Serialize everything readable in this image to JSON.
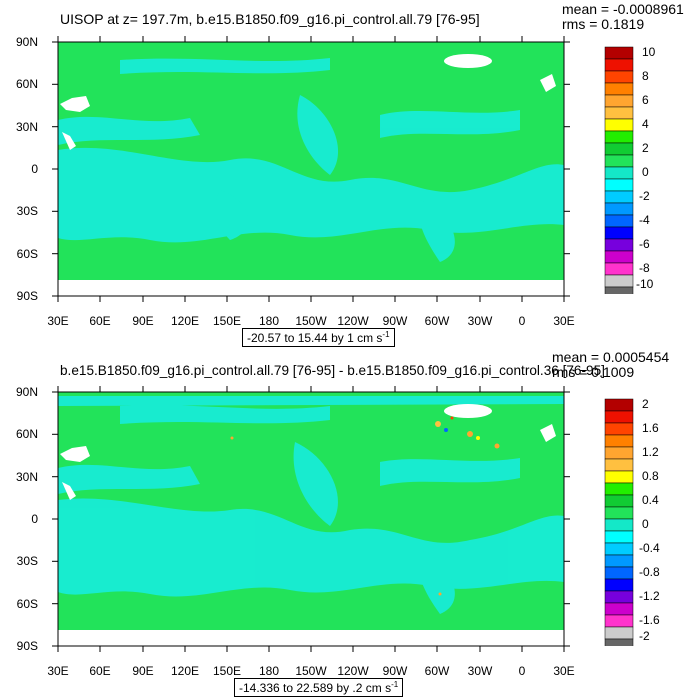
{
  "panels": [
    {
      "title": "UISOP at z= 197.7m, b.e15.B1850.f09_g16.pi_control.all.79 [76-95]",
      "mean_text": "mean = -0.0008961",
      "rms_text": "rms = 0.1819",
      "range_text": "-20.57 to 15.44 by 1 cm s",
      "range_unit_sup": "-1",
      "colorbar_labels": [
        "10",
        "8",
        "6",
        "4",
        "2",
        "0",
        "-2",
        "-4",
        "-6",
        "-8",
        "-10"
      ]
    },
    {
      "title": "b.e15.B1850.f09_g16.pi_control.all.79 [76-95] - b.e15.B1850.f09_g16.pi_control.36 [76-95]",
      "mean_text": "mean = 0.0005454",
      "rms_text": "rms = 0.1009",
      "range_text": "-14.336 to 22.589 by .2 cm s",
      "range_unit_sup": "-1",
      "colorbar_labels": [
        "2",
        "1.6",
        "1.2",
        "0.8",
        "0.4",
        "0",
        "-0.4",
        "-0.8",
        "-1.2",
        "-1.6",
        "-2"
      ]
    }
  ],
  "lat_labels": [
    "90N",
    "60N",
    "30N",
    "0",
    "30S",
    "60S",
    "90S"
  ],
  "lon_labels": [
    "30E",
    "60E",
    "90E",
    "120E",
    "150E",
    "180",
    "150W",
    "120W",
    "90W",
    "60W",
    "30W",
    "0",
    "30E"
  ],
  "colors": {
    "ocean_green": "#22e35a",
    "anomaly_cyan": "#18ecd6",
    "land_white": "#ffffff",
    "colorbar": [
      "#b30000",
      "#ee1100",
      "#ff4400",
      "#ff8000",
      "#ffa530",
      "#ffc040",
      "#ffff00",
      "#22ee00",
      "#11cc33",
      "#22e35a",
      "#14e8c8",
      "#00ffff",
      "#00ccff",
      "#0099ff",
      "#0066ff",
      "#0000ff",
      "#7700dd",
      "#cc00cc",
      "#ff33cc",
      "#cccccc",
      "#666666"
    ]
  }
}
